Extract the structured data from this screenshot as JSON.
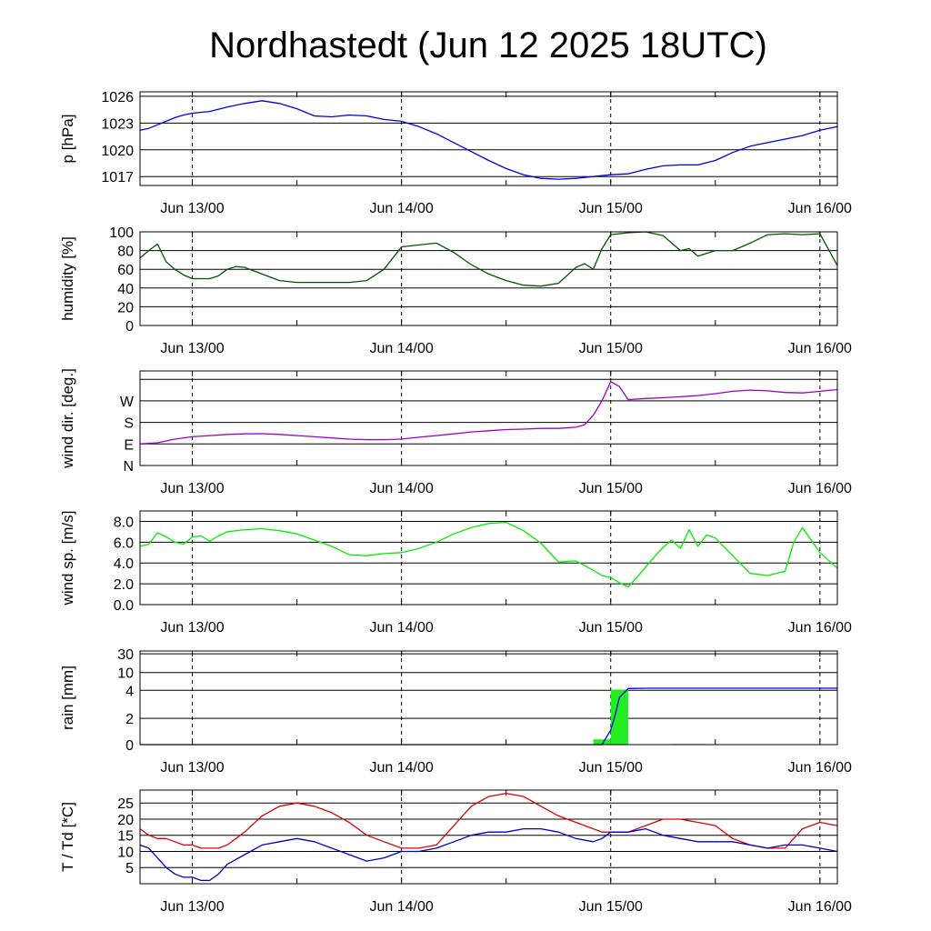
{
  "title": "Nordhastedt (Jun 12 2025 18UTC)",
  "x_axis": {
    "range_hours_from_jun13_00": [
      -6,
      74
    ],
    "tick_labels": [
      "Jun 13/00",
      "Jun 14/00",
      "Jun 15/00",
      "Jun 16/00"
    ],
    "tick_hours": [
      0,
      24,
      48,
      72
    ],
    "minor_tick_hours": [
      12,
      36,
      60
    ]
  },
  "chart_data": [
    {
      "type": "line",
      "ylabel": "p [hPa]",
      "ylim": [
        1016,
        1026.5
      ],
      "yticks": [
        1017,
        1020,
        1023,
        1026
      ],
      "ytick_labels": [
        "1017",
        "1020",
        "1023",
        "1026"
      ],
      "grid": "horizontal at ticks, vertical dashed at day marks",
      "series": [
        {
          "color": "#0000e6",
          "x": [
            -6,
            -5,
            -4,
            -3,
            -2,
            -1,
            0,
            2,
            4,
            6,
            8,
            10,
            12,
            14,
            16,
            18,
            20,
            22,
            24,
            26,
            28,
            30,
            32,
            34,
            36,
            38,
            40,
            42,
            44,
            46,
            48,
            50,
            52,
            54,
            56,
            58,
            60,
            62,
            64,
            66,
            68,
            70,
            72,
            74
          ],
          "y": [
            1022.2,
            1022.4,
            1022.8,
            1023.2,
            1023.6,
            1023.9,
            1024.1,
            1024.3,
            1024.8,
            1025.2,
            1025.5,
            1025.2,
            1024.6,
            1023.8,
            1023.7,
            1023.9,
            1023.8,
            1023.4,
            1023.2,
            1022.6,
            1021.8,
            1020.8,
            1019.8,
            1018.8,
            1017.9,
            1017.2,
            1016.8,
            1016.7,
            1016.8,
            1017.0,
            1017.2,
            1017.3,
            1017.8,
            1018.2,
            1018.3,
            1018.3,
            1018.8,
            1019.7,
            1020.4,
            1020.8,
            1021.2,
            1021.6,
            1022.2,
            1022.6
          ]
        }
      ]
    },
    {
      "type": "line",
      "ylabel": "humidity [%]",
      "ylim": [
        0,
        100
      ],
      "yticks": [
        0,
        20,
        40,
        60,
        80,
        100
      ],
      "ytick_labels": [
        "0",
        "20",
        "40",
        "60",
        "80",
        "100"
      ],
      "grid": "horizontal at ticks, vertical dashed at day marks",
      "series": [
        {
          "color": "#005500",
          "x": [
            -6,
            -5,
            -4,
            -3,
            -2,
            -1,
            0,
            1,
            2,
            3,
            4,
            5,
            6,
            8,
            10,
            12,
            14,
            16,
            18,
            20,
            22,
            24,
            26,
            28,
            30,
            32,
            34,
            36,
            38,
            40,
            42,
            44,
            45,
            46,
            47,
            48,
            50,
            52,
            54,
            56,
            57,
            58,
            60,
            62,
            64,
            66,
            68,
            70,
            72,
            74
          ],
          "y": [
            72,
            80,
            87,
            68,
            60,
            54,
            50,
            50,
            50,
            53,
            60,
            63,
            62,
            55,
            48,
            46,
            46,
            46,
            46,
            48,
            60,
            84,
            86,
            88,
            78,
            65,
            55,
            48,
            43,
            42,
            45,
            62,
            66,
            60,
            82,
            97,
            99,
            100,
            96,
            80,
            82,
            74,
            80,
            80,
            88,
            97,
            98,
            97,
            98,
            64
          ]
        }
      ]
    },
    {
      "type": "line",
      "ylabel": "wind dir. [deg.]",
      "ylim": [
        0,
        395
      ],
      "yticks": [
        0,
        90,
        180,
        270,
        360
      ],
      "ytick_labels": [
        "N",
        "E",
        "S",
        "W",
        ""
      ],
      "grid": "horizontal at ticks, vertical dashed at day marks",
      "series": [
        {
          "color": "#9900cc",
          "x": [
            -6,
            -4,
            -2,
            0,
            2,
            4,
            6,
            8,
            10,
            12,
            14,
            16,
            18,
            20,
            22,
            24,
            26,
            28,
            30,
            32,
            34,
            36,
            38,
            40,
            42,
            44,
            45,
            46,
            47,
            48,
            49,
            50,
            52,
            54,
            56,
            58,
            60,
            62,
            64,
            66,
            68,
            70,
            72,
            74
          ],
          "y": [
            90,
            95,
            110,
            120,
            125,
            130,
            132,
            133,
            130,
            125,
            120,
            115,
            110,
            108,
            108,
            110,
            118,
            125,
            132,
            140,
            145,
            150,
            152,
            155,
            155,
            160,
            170,
            210,
            270,
            350,
            330,
            275,
            280,
            283,
            287,
            292,
            300,
            310,
            315,
            312,
            305,
            303,
            310,
            317
          ]
        }
      ]
    },
    {
      "type": "line",
      "ylabel": "wind sp. [m/s]",
      "ylim": [
        0,
        9
      ],
      "yticks": [
        0,
        2,
        4,
        6,
        8
      ],
      "ytick_labels": [
        "0.0",
        "2.0",
        "4.0",
        "6.0",
        "8.0"
      ],
      "grid": "horizontal at ticks, vertical dashed at day marks",
      "series": [
        {
          "color": "#00ee00",
          "x": [
            -6,
            -5,
            -4,
            -3,
            -2,
            -1,
            0,
            1,
            2,
            3,
            4,
            6,
            8,
            10,
            12,
            14,
            16,
            18,
            20,
            22,
            24,
            26,
            28,
            30,
            32,
            34,
            36,
            38,
            40,
            42,
            44,
            46,
            47,
            48,
            49,
            50,
            51,
            52,
            53,
            54,
            55,
            56,
            57,
            58,
            59,
            60,
            62,
            64,
            66,
            68,
            69,
            70,
            71,
            72,
            74
          ],
          "y": [
            5.6,
            5.8,
            6.9,
            6.5,
            6.0,
            5.8,
            6.5,
            6.6,
            6.1,
            6.6,
            7.0,
            7.2,
            7.3,
            7.1,
            6.8,
            6.2,
            5.6,
            4.8,
            4.7,
            4.9,
            5.0,
            5.4,
            6.0,
            6.8,
            7.4,
            7.8,
            7.9,
            7.1,
            5.9,
            4.1,
            4.2,
            3.3,
            2.8,
            2.6,
            2.1,
            1.7,
            2.6,
            3.6,
            4.6,
            5.5,
            6.2,
            5.4,
            7.2,
            5.6,
            6.7,
            6.4,
            4.7,
            3.0,
            2.8,
            3.2,
            6.0,
            7.4,
            6.2,
            5.0,
            3.5
          ]
        }
      ]
    },
    {
      "type": "bar",
      "ylabel": "rain [mm]",
      "scale": "nonlinear (piecewise)",
      "yticks": [
        0,
        2,
        4,
        10,
        30
      ],
      "ytick_labels": [
        "0",
        "2",
        "4",
        "10",
        "30"
      ],
      "grid": "horizontal at ticks, vertical dashed at day marks",
      "bars": {
        "color": "#22ee22",
        "x": [
          47,
          49,
          56,
          58
        ],
        "width_hours": 2,
        "values": [
          0.4,
          4.2,
          0.05,
          0.05
        ]
      },
      "series": [
        {
          "name": "accumulated",
          "color": "#0000e6",
          "x": [
            -6,
            46,
            47,
            48,
            48.5,
            49,
            50,
            52,
            60,
            74
          ],
          "y": [
            0,
            0,
            0,
            1.1,
            2.2,
            3.5,
            4.6,
            4.7,
            4.7,
            4.7
          ]
        }
      ]
    },
    {
      "type": "line",
      "ylabel": "T / Td [*C]",
      "ylim": [
        0,
        29
      ],
      "yticks": [
        5,
        10,
        15,
        20,
        25
      ],
      "ytick_labels": [
        "5",
        "10",
        "15",
        "20",
        "25"
      ],
      "grid": "horizontal at ticks, vertical dashed at day marks",
      "series": [
        {
          "color": "#dd0000",
          "x": [
            -6,
            -5,
            -4,
            -3,
            -2,
            -1,
            0,
            1,
            2,
            3,
            4,
            6,
            8,
            10,
            12,
            14,
            16,
            18,
            20,
            22,
            24,
            26,
            28,
            30,
            32,
            34,
            36,
            38,
            40,
            42,
            44,
            46,
            47,
            48,
            50,
            52,
            54,
            56,
            58,
            60,
            62,
            64,
            66,
            68,
            70,
            72,
            74
          ],
          "y": [
            17,
            15,
            14,
            14,
            13,
            12,
            12,
            11,
            11,
            11,
            12,
            16,
            21,
            24,
            25,
            24,
            22,
            19,
            15,
            13,
            11,
            11,
            12,
            18,
            24,
            27,
            28,
            27,
            24,
            21,
            19,
            17,
            16,
            16,
            16,
            18,
            20,
            20,
            19,
            18,
            14,
            12,
            11,
            11,
            17,
            19,
            18
          ]
        },
        {
          "color": "#0000cc",
          "x": [
            -6,
            -5,
            -4,
            -3,
            -2,
            -1,
            0,
            1,
            2,
            3,
            4,
            6,
            8,
            10,
            12,
            14,
            16,
            18,
            20,
            22,
            24,
            26,
            28,
            30,
            32,
            34,
            36,
            38,
            40,
            42,
            44,
            46,
            47,
            48,
            50,
            52,
            54,
            56,
            58,
            60,
            62,
            64,
            66,
            68,
            70,
            72,
            74
          ],
          "y": [
            12,
            11,
            8,
            5,
            3,
            2,
            2,
            1,
            1,
            3,
            6,
            9,
            12,
            13,
            14,
            13,
            11,
            9,
            7,
            8,
            10,
            10,
            11,
            13,
            15,
            16,
            16,
            17,
            17,
            16,
            14,
            13,
            14,
            16,
            16,
            17,
            15,
            14,
            13,
            13,
            13,
            12,
            11,
            12,
            12,
            11,
            10
          ]
        }
      ]
    }
  ]
}
